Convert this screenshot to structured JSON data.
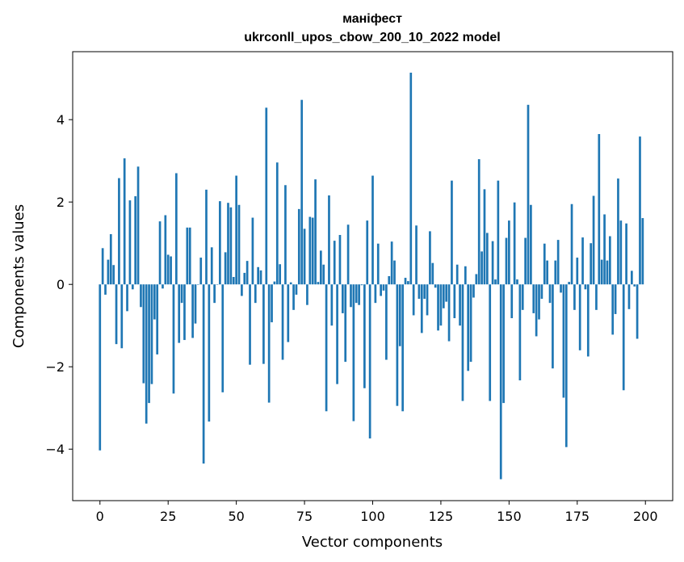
{
  "chart_data": {
    "type": "bar",
    "title": "маніфест",
    "subtitle": "ukrconll_upos_cbow_200_10_2022 model",
    "xlabel": "Vector components",
    "ylabel": "Components values",
    "xlim": [
      -10,
      210
    ],
    "ylim": [
      -5.25,
      5.65
    ],
    "xticks": [
      0,
      25,
      50,
      75,
      100,
      125,
      150,
      175,
      200
    ],
    "xtick_labels": [
      "0",
      "25",
      "50",
      "75",
      "100",
      "125",
      "150",
      "175",
      "200"
    ],
    "yticks": [
      -4,
      -2,
      0,
      2,
      4
    ],
    "ytick_labels": [
      "−4",
      "−2",
      "0",
      "2",
      "4"
    ],
    "grid": false,
    "bar_color": "#1f77b4",
    "x": [
      0,
      1,
      2,
      3,
      4,
      5,
      6,
      7,
      8,
      9,
      10,
      11,
      12,
      13,
      14,
      15,
      16,
      17,
      18,
      19,
      20,
      21,
      22,
      23,
      24,
      25,
      26,
      27,
      28,
      29,
      30,
      31,
      32,
      33,
      34,
      35,
      36,
      37,
      38,
      39,
      40,
      41,
      42,
      43,
      44,
      45,
      46,
      47,
      48,
      49,
      50,
      51,
      52,
      53,
      54,
      55,
      56,
      57,
      58,
      59,
      60,
      61,
      62,
      63,
      64,
      65,
      66,
      67,
      68,
      69,
      70,
      71,
      72,
      73,
      74,
      75,
      76,
      77,
      78,
      79,
      80,
      81,
      82,
      83,
      84,
      85,
      86,
      87,
      88,
      89,
      90,
      91,
      92,
      93,
      94,
      95,
      96,
      97,
      98,
      99,
      100,
      101,
      102,
      103,
      104,
      105,
      106,
      107,
      108,
      109,
      110,
      111,
      112,
      113,
      114,
      115,
      116,
      117,
      118,
      119,
      120,
      121,
      122,
      123,
      124,
      125,
      126,
      127,
      128,
      129,
      130,
      131,
      132,
      133,
      134,
      135,
      136,
      137,
      138,
      139,
      140,
      141,
      142,
      143,
      144,
      145,
      146,
      147,
      148,
      149,
      150,
      151,
      152,
      153,
      154,
      155,
      156,
      157,
      158,
      159,
      160,
      161,
      162,
      163,
      164,
      165,
      166,
      167,
      168,
      169,
      170,
      171,
      172,
      173,
      174,
      175,
      176,
      177,
      178,
      179,
      180,
      181,
      182,
      183,
      184,
      185,
      186,
      187,
      188,
      189,
      190,
      191,
      192,
      193,
      194,
      195,
      196,
      197,
      198,
      199
    ],
    "values": [
      -4.03,
      0.88,
      -0.25,
      0.6,
      1.22,
      0.47,
      -1.45,
      2.58,
      -1.55,
      3.06,
      -0.65,
      2.04,
      -0.12,
      2.14,
      2.86,
      -0.55,
      -2.4,
      -3.38,
      -2.88,
      -2.42,
      -0.85,
      -1.7,
      1.53,
      -0.1,
      1.68,
      0.72,
      0.68,
      -2.65,
      2.7,
      -1.42,
      -0.45,
      -1.35,
      1.38,
      1.38,
      -1.3,
      -0.95,
      0.0,
      0.65,
      -4.35,
      2.3,
      -3.33,
      0.9,
      -0.45,
      0.0,
      2.02,
      -2.62,
      0.78,
      1.98,
      1.87,
      0.18,
      2.64,
      1.93,
      -0.28,
      0.28,
      0.57,
      -1.95,
      1.62,
      -0.45,
      0.42,
      0.34,
      -1.93,
      4.29,
      -2.87,
      -0.92,
      0.07,
      2.96,
      0.49,
      -1.83,
      2.41,
      -1.4,
      0.05,
      -0.62,
      -0.25,
      1.83,
      4.48,
      1.35,
      -0.5,
      1.64,
      1.62,
      2.55,
      0.06,
      0.82,
      0.48,
      -3.08,
      2.16,
      -1.0,
      1.06,
      -2.42,
      1.2,
      -0.7,
      -1.88,
      1.45,
      -0.55,
      -3.32,
      -0.45,
      -0.5,
      -0.02,
      -2.52,
      1.55,
      -3.74,
      2.64,
      -0.45,
      0.99,
      -0.28,
      -0.15,
      -1.83,
      0.2,
      1.04,
      0.58,
      -2.95,
      -1.5,
      -3.08,
      0.16,
      0.08,
      5.14,
      -0.75,
      1.43,
      -0.35,
      -1.18,
      -0.35,
      -0.75,
      1.29,
      0.52,
      -0.08,
      -1.12,
      -1.0,
      -0.58,
      -0.42,
      -1.38,
      2.52,
      -0.82,
      0.48,
      -1.0,
      -2.83,
      0.44,
      -2.1,
      -1.88,
      -0.32,
      0.25,
      3.04,
      0.8,
      2.31,
      1.25,
      -2.83,
      1.05,
      0.12,
      2.52,
      -4.73,
      -2.88,
      1.13,
      1.55,
      -0.82,
      1.99,
      0.12,
      -2.33,
      -0.62,
      1.13,
      4.36,
      1.93,
      -0.7,
      -1.26,
      -0.85,
      -0.35,
      0.99,
      0.58,
      -0.45,
      -2.04,
      0.58,
      1.08,
      -0.2,
      -2.75,
      -3.95,
      0.06,
      1.95,
      -0.62,
      0.65,
      -1.6,
      1.14,
      -0.12,
      -1.75,
      1.0,
      2.15,
      -0.62,
      3.65,
      0.6,
      1.7,
      0.58,
      1.17,
      -1.22,
      -0.72,
      2.57,
      1.55,
      -2.57,
      1.48,
      -0.6,
      0.33,
      -0.05,
      -1.32,
      3.59,
      1.61
    ]
  }
}
